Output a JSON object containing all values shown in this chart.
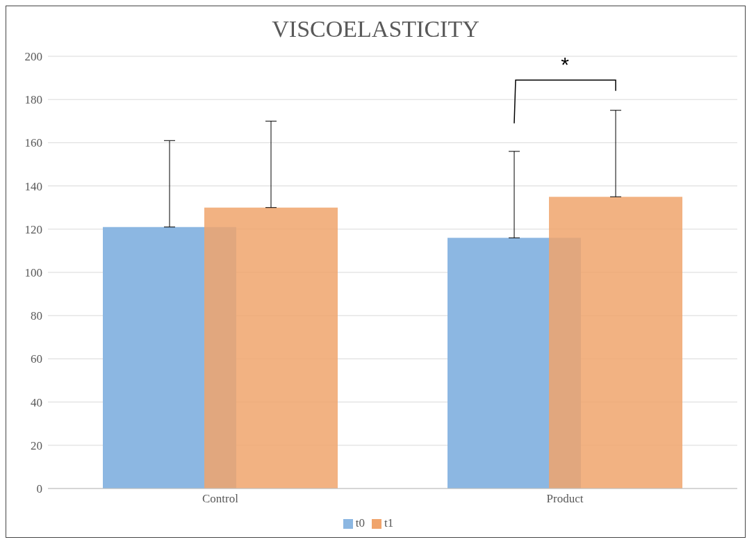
{
  "chart_data": {
    "type": "bar",
    "title": "VISCOELASTICITY",
    "categories": [
      "Control",
      "Product"
    ],
    "series": [
      {
        "name": "t0",
        "color": "#8cb7e2",
        "values": [
          121,
          116
        ],
        "errors": [
          [
            121,
            161
          ],
          [
            116,
            156
          ]
        ]
      },
      {
        "name": "t1",
        "color": "#f0a46c",
        "values": [
          130,
          135
        ],
        "errors": [
          [
            130,
            170
          ],
          [
            135,
            175
          ]
        ]
      }
    ],
    "ylim": [
      0,
      200
    ],
    "yticks": [
      0,
      20,
      40,
      60,
      80,
      100,
      120,
      140,
      160,
      180,
      200
    ],
    "grid": "y",
    "legend": "bottom",
    "annotations": [
      "*"
    ]
  }
}
